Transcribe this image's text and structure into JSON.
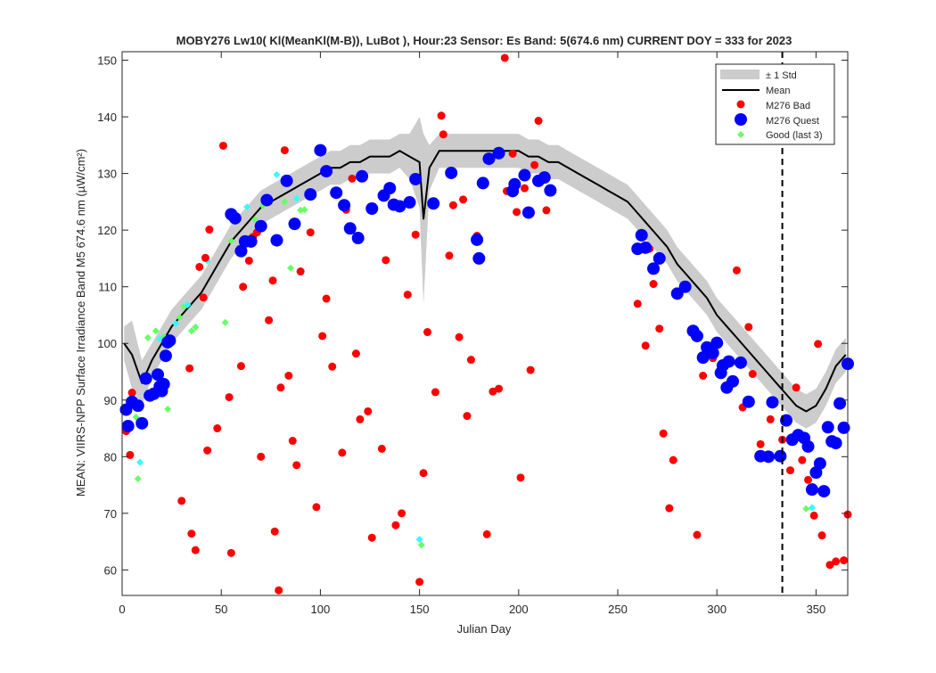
{
  "chart_data": {
    "type": "scatter",
    "title": "MOBY276   Lw10( Kl(MeanKl(M-B)), LuBot ),    Hour:23 Sensor: Es Band: 5(674.6 nm)   CURRENT DOY = 333 for 2023",
    "xlabel": "Julian Day",
    "ylabel": "MEAN: VIIRS-NPP Surface Irradiance Band M5 674.6 nm (µW/cm²)",
    "xlim": [
      0,
      366
    ],
    "ylim": [
      55.5,
      151.5
    ],
    "xticks": [
      0,
      50,
      100,
      150,
      200,
      250,
      300,
      350
    ],
    "yticks": [
      60,
      70,
      80,
      90,
      100,
      110,
      120,
      130,
      140,
      150
    ],
    "grid": false,
    "legend_position": "top-right",
    "current_doy": 333,
    "legend": [
      {
        "key": "std",
        "label": "± 1 Std"
      },
      {
        "key": "mean",
        "label": "Mean"
      },
      {
        "key": "bad",
        "label": "M276 Bad"
      },
      {
        "key": "quest",
        "label": "M276 Quest"
      },
      {
        "key": "good",
        "label": "Good (last 3)"
      }
    ],
    "colors": {
      "std": "#cccccc",
      "mean": "#000000",
      "bad": "#ff0000",
      "quest": "#0000ff",
      "good": "#66ff66",
      "good_alt": "#33ffff",
      "doy_line": "#000000"
    },
    "mean_curve": {
      "x": [
        1,
        5,
        10,
        15,
        20,
        25,
        30,
        35,
        40,
        45,
        50,
        55,
        60,
        65,
        70,
        75,
        80,
        85,
        90,
        95,
        100,
        105,
        110,
        115,
        120,
        125,
        130,
        135,
        140,
        145,
        150,
        152,
        155,
        160,
        165,
        170,
        175,
        180,
        185,
        190,
        195,
        200,
        205,
        210,
        215,
        220,
        225,
        230,
        235,
        240,
        245,
        250,
        255,
        260,
        265,
        270,
        275,
        280,
        285,
        290,
        295,
        300,
        305,
        310,
        315,
        320,
        325,
        330,
        335,
        340,
        345,
        350,
        355,
        360,
        365
      ],
      "y": [
        100,
        98,
        93,
        97,
        100,
        103,
        105,
        107,
        109,
        112,
        115,
        118,
        120,
        122,
        124,
        125,
        126,
        127,
        128,
        129,
        130,
        131,
        131,
        132,
        132,
        133,
        133,
        133,
        134,
        133,
        132,
        122,
        131,
        134,
        134,
        134,
        134,
        134,
        134,
        134,
        134,
        134,
        133,
        133,
        132,
        132,
        131,
        130,
        129,
        128,
        127,
        126,
        125,
        123,
        121,
        119,
        117,
        114,
        112,
        110,
        108,
        105,
        103,
        101,
        99,
        97,
        95,
        93,
        91,
        89,
        88,
        89,
        92,
        96,
        98
      ],
      "std": [
        3,
        6,
        4,
        3,
        3,
        3,
        3,
        3,
        3,
        3,
        3,
        3,
        3,
        3,
        3,
        3,
        3,
        3,
        3,
        3,
        3,
        3,
        3,
        3,
        3,
        3,
        3,
        3,
        3,
        4,
        8,
        15,
        4,
        3,
        3,
        3,
        3,
        3,
        3,
        3,
        3,
        3,
        3,
        3,
        3,
        3,
        3,
        3,
        3,
        3,
        3,
        3,
        3,
        3,
        3,
        3,
        3,
        3,
        3,
        3,
        3,
        3,
        3,
        3,
        3,
        3,
        3,
        3,
        3,
        3,
        3,
        3,
        3,
        3,
        3
      ]
    },
    "series": [
      {
        "name": "M276 Bad",
        "x": [
          2,
          4,
          5,
          30,
          34,
          35,
          37,
          39,
          41,
          42,
          43,
          44,
          48,
          51,
          54,
          55,
          60,
          61,
          64,
          66,
          68,
          70,
          74,
          76,
          77,
          79,
          80,
          82,
          84,
          86,
          88,
          90,
          95,
          98,
          101,
          103,
          106,
          111,
          113,
          116,
          118,
          120,
          124,
          126,
          131,
          133,
          138,
          141,
          144,
          148,
          150,
          152,
          154,
          158,
          161,
          162,
          165,
          167,
          170,
          172,
          174,
          176,
          179,
          184,
          187,
          190,
          193,
          194,
          197,
          199,
          201,
          203,
          206,
          208,
          210,
          214,
          260,
          264,
          266,
          268,
          271,
          273,
          276,
          278,
          290,
          293,
          298,
          310,
          313,
          316,
          318,
          322,
          327,
          333,
          337,
          340,
          343,
          346,
          349,
          351,
          353,
          357,
          360,
          364,
          366
        ],
        "y": [
          84.5,
          80.3,
          91.3,
          72.2,
          95.6,
          66.4,
          63.5,
          113.5,
          108.1,
          115.1,
          81.1,
          120.1,
          85.0,
          134.9,
          90.5,
          63.0,
          96.0,
          110.0,
          114.6,
          118.8,
          119.6,
          80.0,
          104.1,
          111.1,
          66.8,
          56.4,
          92.2,
          134.1,
          94.3,
          82.8,
          78.5,
          112.7,
          119.6,
          71.1,
          101.3,
          107.9,
          95.9,
          80.7,
          123.6,
          129.1,
          98.2,
          86.6,
          88.0,
          65.7,
          81.4,
          114.7,
          67.9,
          70.0,
          108.6,
          119.2,
          57.9,
          77.1,
          102.0,
          91.4,
          140.2,
          136.9,
          115.5,
          124.4,
          101.1,
          125.4,
          87.2,
          97.1,
          119.0,
          66.3,
          91.5,
          92.0,
          150.4,
          126.9,
          133.5,
          123.2,
          76.3,
          127.4,
          95.3,
          131.5,
          139.3,
          123.5,
          107.0,
          99.6,
          116.7,
          110.5,
          102.6,
          84.1,
          70.9,
          79.4,
          66.2,
          94.3,
          97.4,
          112.9,
          88.7,
          102.9,
          94.6,
          82.2,
          86.6,
          83.0,
          77.6,
          92.2,
          79.4,
          75.9,
          69.6,
          99.9,
          66.1,
          60.9,
          61.5,
          61.7,
          69.8
        ]
      },
      {
        "name": "M276 Quest",
        "x": [
          2,
          3,
          5,
          8,
          10,
          12,
          14,
          16,
          18,
          19,
          20,
          21,
          22,
          23,
          24,
          55,
          57,
          60,
          62,
          65,
          70,
          73,
          78,
          83,
          87,
          95,
          100,
          103,
          108,
          112,
          115,
          119,
          121,
          126,
          132,
          135,
          137,
          140,
          145,
          148,
          157,
          166,
          179,
          180,
          182,
          185,
          190,
          197,
          198,
          203,
          205,
          210,
          213,
          216,
          260,
          262,
          264,
          268,
          271,
          280,
          284,
          288,
          290,
          293,
          295,
          298,
          300,
          302,
          303,
          305,
          306,
          308,
          312,
          316,
          322,
          326,
          328,
          332,
          335,
          338,
          341,
          344,
          346,
          348,
          350,
          352,
          354,
          356,
          358,
          360,
          362,
          364,
          366
        ],
        "y": [
          88.3,
          85.4,
          89.7,
          89.0,
          85.9,
          93.8,
          90.8,
          91.1,
          94.5,
          92.4,
          91.6,
          92.8,
          97.8,
          100.2,
          100.5,
          122.8,
          122.1,
          116.3,
          118.0,
          118.0,
          120.7,
          125.3,
          118.2,
          128.7,
          121.1,
          126.3,
          134.1,
          130.4,
          126.6,
          124.4,
          120.3,
          118.6,
          129.5,
          123.8,
          126.1,
          127.4,
          124.5,
          124.2,
          124.9,
          129.0,
          124.7,
          130.1,
          118.3,
          115.0,
          128.3,
          132.6,
          133.6,
          126.9,
          128.1,
          129.7,
          123.1,
          128.7,
          129.3,
          127.0,
          116.7,
          119.1,
          116.9,
          113.2,
          115.0,
          108.8,
          110.0,
          102.2,
          101.3,
          97.5,
          99.3,
          98.3,
          100.1,
          94.8,
          96.1,
          92.2,
          96.8,
          93.3,
          96.6,
          89.7,
          80.1,
          80.0,
          89.6,
          80.1,
          86.4,
          83.0,
          83.8,
          83.3,
          81.8,
          74.2,
          77.2,
          78.8,
          73.9,
          85.2,
          82.7,
          82.4,
          89.4,
          85.1,
          96.4
        ]
      },
      {
        "name": "Good (last 3)",
        "x": [
          7,
          8,
          9,
          13,
          17,
          19,
          21,
          23,
          27,
          29,
          31,
          33,
          35,
          37,
          43,
          52,
          55,
          63,
          67,
          71,
          78,
          82,
          85,
          88,
          90,
          92,
          150,
          151,
          345,
          348
        ],
        "y": [
          87.0,
          76.1,
          79.0,
          101.0,
          102.2,
          100.8,
          101.2,
          88.4,
          103.5,
          104.6,
          106.5,
          106.8,
          102.2,
          102.9,
          114.6,
          103.7,
          118.1,
          124.1,
          121.9,
          124.3,
          129.8,
          125.0,
          113.3,
          125.6,
          123.5,
          123.6,
          65.4,
          64.4,
          70.8,
          71.0
        ]
      }
    ]
  }
}
